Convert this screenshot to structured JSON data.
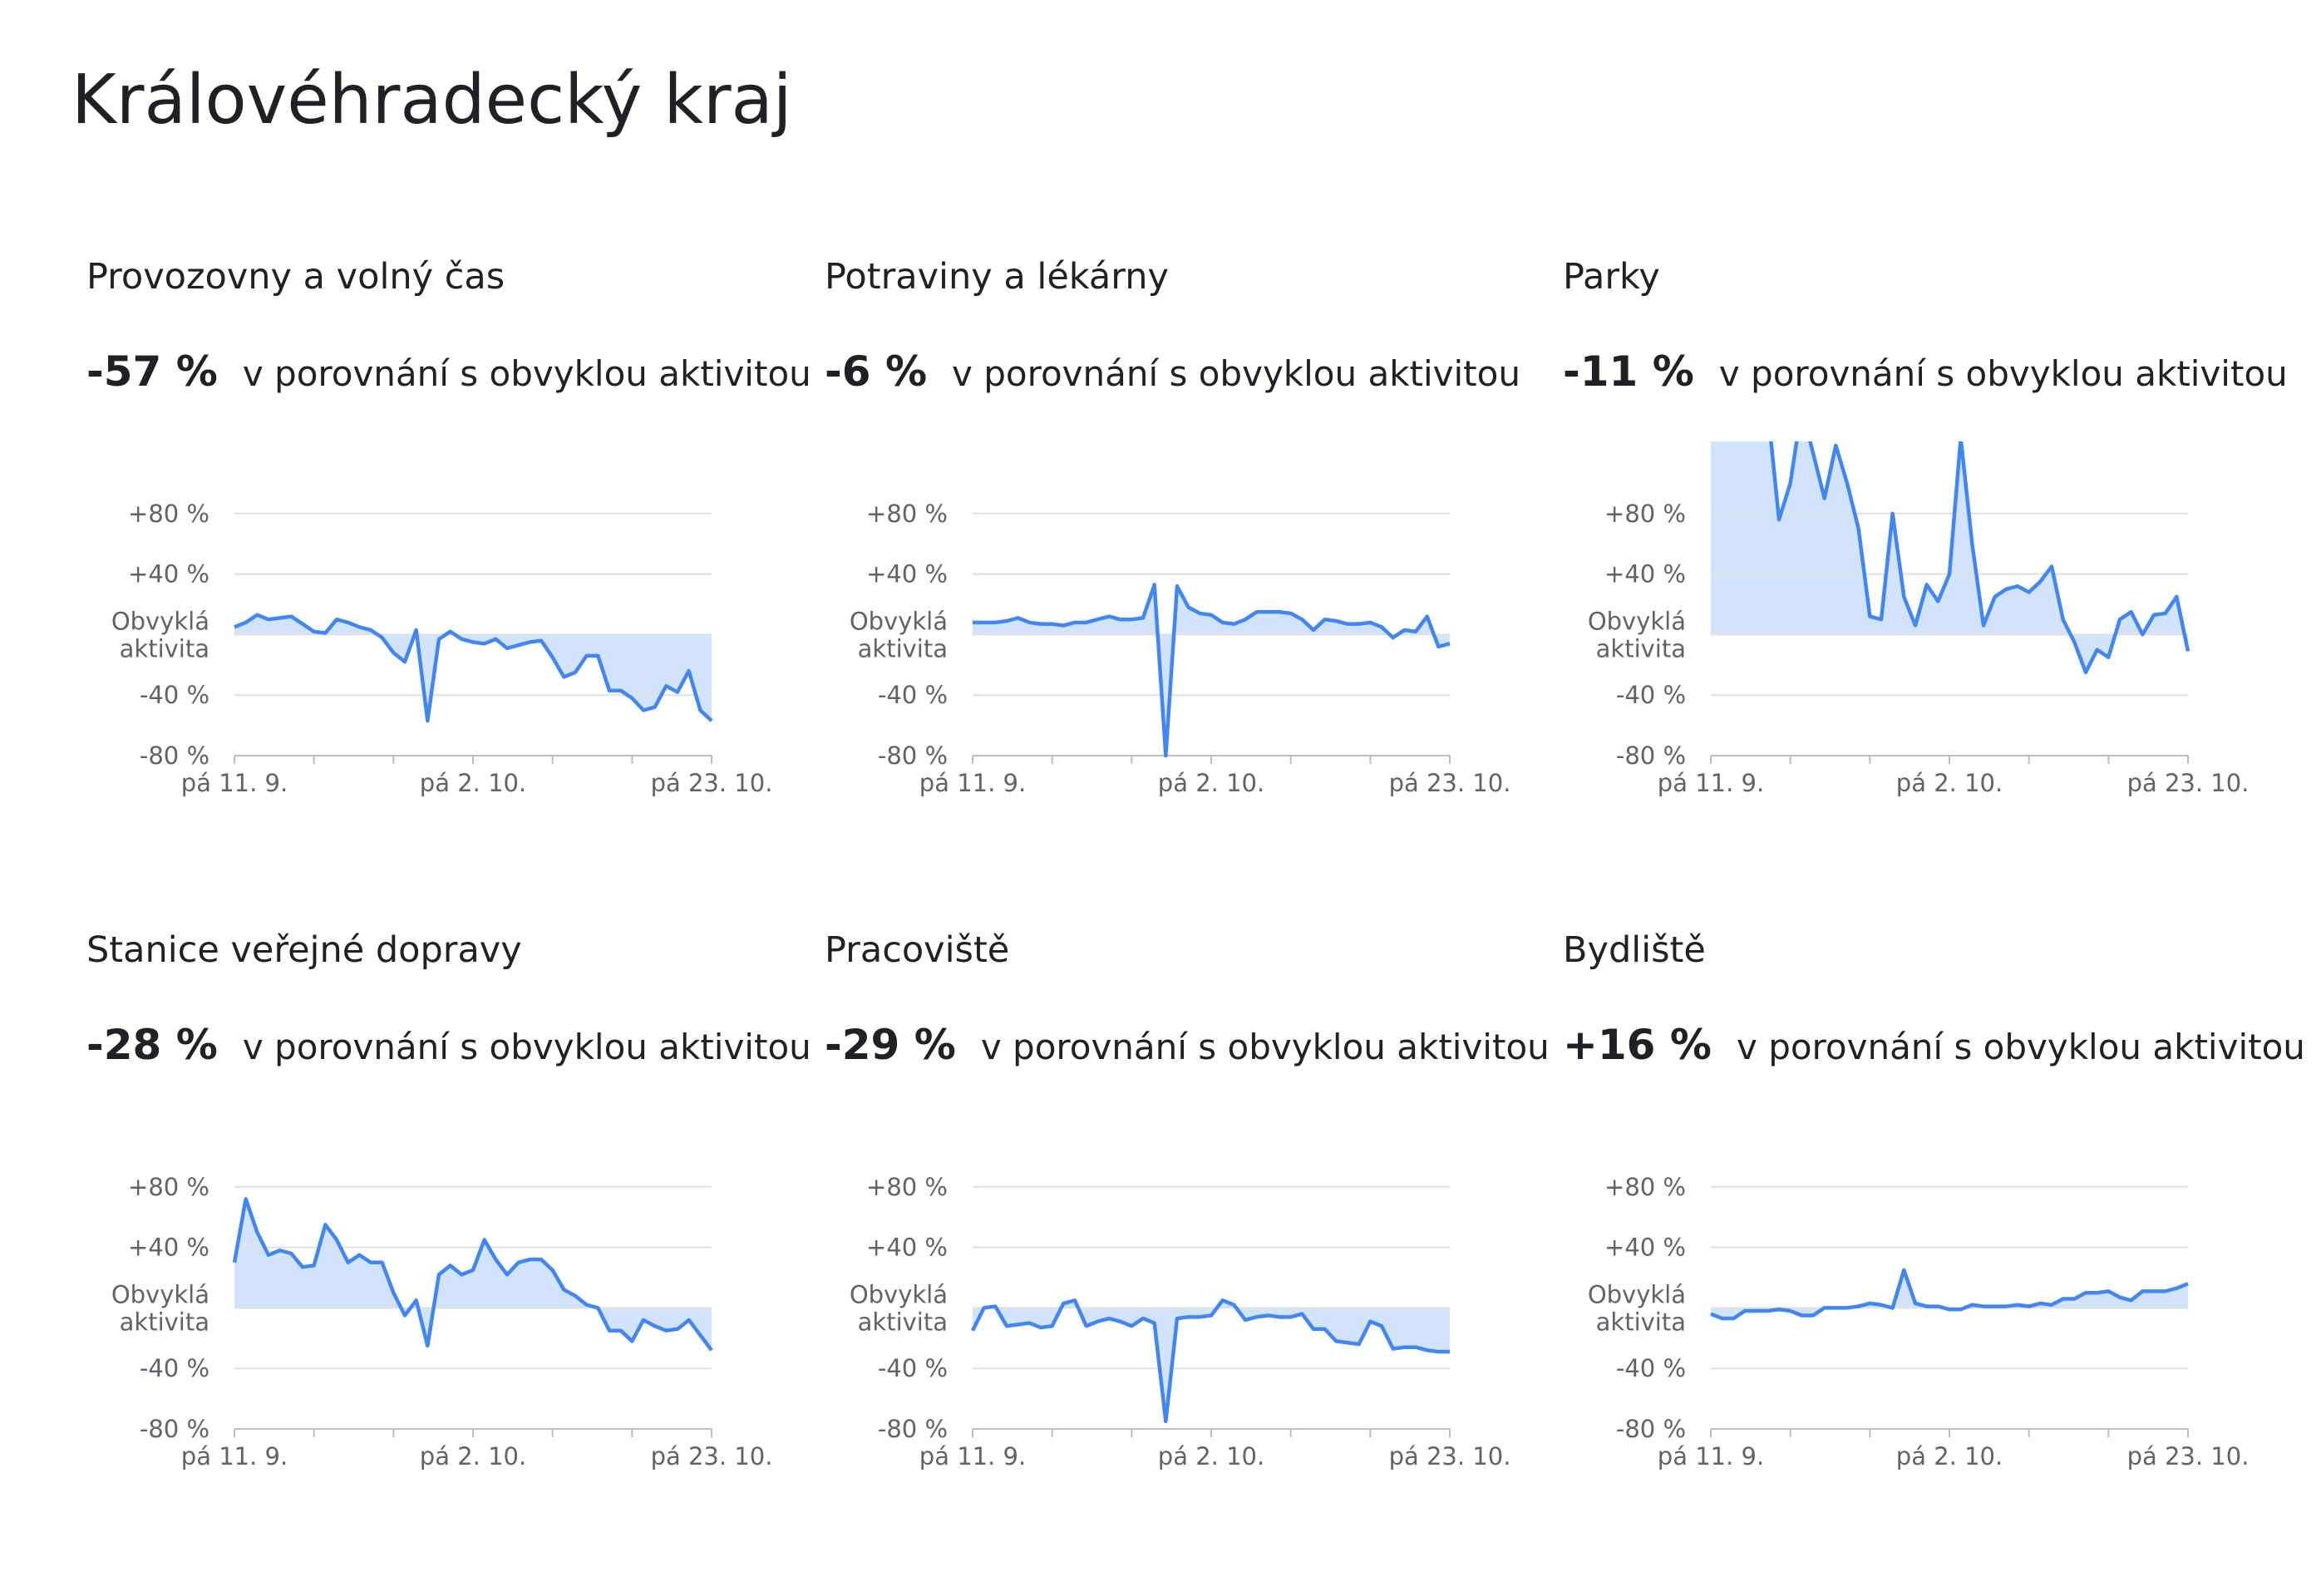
{
  "title": "Královéhradecký kraj",
  "chart_data": [
    {
      "type": "line",
      "title": "Provozovny a volný čas",
      "change": {
        "value": -57,
        "label": "-57 %"
      },
      "subtitle": "v porovnání s obvyklou aktivitou",
      "categories": [
        "pá 11. 9.",
        null,
        null,
        null,
        null,
        null,
        null,
        null,
        null,
        null,
        null,
        null,
        null,
        null,
        null,
        null,
        null,
        null,
        null,
        null,
        null,
        "pá 2. 10.",
        null,
        null,
        null,
        null,
        null,
        null,
        null,
        null,
        null,
        null,
        null,
        null,
        null,
        null,
        null,
        null,
        null,
        null,
        null,
        null,
        "pá 23. 10."
      ],
      "values": [
        5,
        8,
        13,
        10,
        11,
        12,
        7,
        2,
        1,
        10,
        8,
        5,
        3,
        -2,
        -12,
        -18,
        3,
        -57,
        -3,
        2,
        -3,
        -5,
        -6,
        -3,
        -9,
        -7,
        -5,
        -4,
        -15,
        -28,
        -25,
        -14,
        -14,
        -37,
        -37,
        -42,
        -50,
        -48,
        -34,
        -38,
        -24,
        -50,
        -57
      ],
      "ylim": [
        -80,
        120
      ],
      "yticks": [
        {
          "value": -80,
          "label": "-80 %"
        },
        {
          "value": -40,
          "label": "-40 %"
        },
        {
          "value": 0,
          "label": "Obvyklá aktivita"
        },
        {
          "value": 40,
          "label": "+40 %"
        },
        {
          "value": 80,
          "label": "+80 %"
        }
      ],
      "color": "#4285f4"
    },
    {
      "type": "line",
      "title": "Potraviny a lékárny",
      "change": {
        "value": -6,
        "label": "-6 %"
      },
      "subtitle": "v porovnání s obvyklou aktivitou",
      "categories": [
        "pá 11. 9.",
        null,
        null,
        null,
        null,
        null,
        null,
        null,
        null,
        null,
        null,
        null,
        null,
        null,
        null,
        null,
        null,
        null,
        null,
        null,
        null,
        "pá 2. 10.",
        null,
        null,
        null,
        null,
        null,
        null,
        null,
        null,
        null,
        null,
        null,
        null,
        null,
        null,
        null,
        null,
        null,
        null,
        null,
        null,
        "pá 23. 10."
      ],
      "values": [
        8,
        8,
        8,
        9,
        11,
        8,
        7,
        7,
        6,
        8,
        8,
        10,
        12,
        10,
        10,
        11,
        33,
        -80,
        32,
        18,
        14,
        13,
        8,
        7,
        10,
        15,
        15,
        15,
        14,
        10,
        3,
        10,
        9,
        7,
        7,
        8,
        5,
        -2,
        3,
        2,
        12,
        -8,
        -6
      ],
      "ylim": [
        -80,
        120
      ],
      "yticks": [
        {
          "value": -80,
          "label": "-80 %"
        },
        {
          "value": -40,
          "label": "-40 %"
        },
        {
          "value": 0,
          "label": "Obvyklá aktivita"
        },
        {
          "value": 40,
          "label": "+40 %"
        },
        {
          "value": 80,
          "label": "+80 %"
        }
      ],
      "color": "#4285f4"
    },
    {
      "type": "line",
      "title": "Parky",
      "change": {
        "value": -11,
        "label": "-11 %"
      },
      "subtitle": "v porovnání s obvyklou aktivitou",
      "categories": [
        "pá 11. 9.",
        null,
        null,
        null,
        null,
        null,
        null,
        null,
        null,
        null,
        null,
        null,
        null,
        null,
        null,
        null,
        null,
        null,
        null,
        null,
        null,
        "pá 2. 10.",
        null,
        null,
        null,
        null,
        null,
        null,
        null,
        null,
        null,
        null,
        null,
        null,
        null,
        null,
        null,
        null,
        null,
        null,
        null,
        null,
        "pá 23. 10."
      ],
      "values": [
        130,
        140,
        150,
        130,
        135,
        150,
        76,
        100,
        150,
        120,
        90,
        125,
        100,
        70,
        12,
        10,
        80,
        25,
        6,
        33,
        22,
        40,
        130,
        60,
        6,
        25,
        30,
        32,
        28,
        35,
        45,
        10,
        -5,
        -25,
        -10,
        -15,
        10,
        15,
        0,
        13,
        14,
        25,
        -11
      ],
      "ylim": [
        -80,
        120
      ],
      "yticks": [
        {
          "value": -80,
          "label": "-80 %"
        },
        {
          "value": -40,
          "label": "-40 %"
        },
        {
          "value": 0,
          "label": "Obvyklá aktivita"
        },
        {
          "value": 40,
          "label": "+40 %"
        },
        {
          "value": 80,
          "label": "+80 %"
        }
      ],
      "color": "#4285f4"
    },
    {
      "type": "line",
      "title": "Stanice veřejné dopravy",
      "change": {
        "value": -28,
        "label": "-28 %"
      },
      "subtitle": "v porovnání s obvyklou aktivitou",
      "categories": [
        "pá 11. 9.",
        null,
        null,
        null,
        null,
        null,
        null,
        null,
        null,
        null,
        null,
        null,
        null,
        null,
        null,
        null,
        null,
        null,
        null,
        null,
        null,
        "pá 2. 10.",
        null,
        null,
        null,
        null,
        null,
        null,
        null,
        null,
        null,
        null,
        null,
        null,
        null,
        null,
        null,
        null,
        null,
        null,
        null,
        null,
        "pá 23. 10."
      ],
      "values": [
        30,
        72,
        50,
        35,
        38,
        36,
        27,
        28,
        55,
        45,
        30,
        35,
        30,
        30,
        10,
        -5,
        5,
        -25,
        22,
        28,
        22,
        25,
        45,
        32,
        22,
        30,
        32,
        32,
        25,
        12,
        8,
        2,
        0,
        -15,
        -15,
        -22,
        -8,
        -12,
        -15,
        -14,
        -8,
        -18,
        -28
      ],
      "ylim": [
        -80,
        120
      ],
      "yticks": [
        {
          "value": -80,
          "label": "-80 %"
        },
        {
          "value": -40,
          "label": "-40 %"
        },
        {
          "value": 0,
          "label": "Obvyklá aktivita"
        },
        {
          "value": 40,
          "label": "+40 %"
        },
        {
          "value": 80,
          "label": "+80 %"
        }
      ],
      "color": "#4285f4"
    },
    {
      "type": "line",
      "title": "Pracoviště",
      "change": {
        "value": -29,
        "label": "-29 %"
      },
      "subtitle": "v porovnání s obvyklou aktivitou",
      "categories": [
        "pá 11. 9.",
        null,
        null,
        null,
        null,
        null,
        null,
        null,
        null,
        null,
        null,
        null,
        null,
        null,
        null,
        null,
        null,
        null,
        null,
        null,
        null,
        "pá 2. 10.",
        null,
        null,
        null,
        null,
        null,
        null,
        null,
        null,
        null,
        null,
        null,
        null,
        null,
        null,
        null,
        null,
        null,
        null,
        null,
        null,
        "pá 23. 10."
      ],
      "values": [
        -15,
        0,
        1,
        -12,
        -11,
        -10,
        -13,
        -12,
        3,
        5,
        -12,
        -9,
        -7,
        -9,
        -12,
        -7,
        -10,
        -75,
        -7,
        -6,
        -6,
        -5,
        5,
        2,
        -8,
        -6,
        -5,
        -6,
        -6,
        -4,
        -14,
        -14,
        -22,
        -23,
        -24,
        -9,
        -12,
        -27,
        -26,
        -26,
        -28,
        -29,
        -29
      ],
      "ylim": [
        -80,
        120
      ],
      "yticks": [
        {
          "value": -80,
          "label": "-80 %"
        },
        {
          "value": -40,
          "label": "-40 %"
        },
        {
          "value": 0,
          "label": "Obvyklá aktivita"
        },
        {
          "value": 40,
          "label": "+40 %"
        },
        {
          "value": 80,
          "label": "+80 %"
        }
      ],
      "color": "#4285f4"
    },
    {
      "type": "line",
      "title": "Bydliště",
      "change": {
        "value": 16,
        "label": "+16 %"
      },
      "subtitle": "v porovnání s obvyklou aktivitou",
      "categories": [
        "pá 11. 9.",
        null,
        null,
        null,
        null,
        null,
        null,
        null,
        null,
        null,
        null,
        null,
        null,
        null,
        null,
        null,
        null,
        null,
        null,
        null,
        null,
        "pá 2. 10.",
        null,
        null,
        null,
        null,
        null,
        null,
        null,
        null,
        null,
        null,
        null,
        null,
        null,
        null,
        null,
        null,
        null,
        null,
        null,
        null,
        "pá 23. 10."
      ],
      "values": [
        -4,
        -7,
        -7,
        -2,
        -2,
        -2,
        -1,
        -2,
        -5,
        -5,
        0,
        0,
        0,
        1,
        3,
        2,
        0,
        25,
        3,
        1,
        1,
        -1,
        -1,
        2,
        1,
        1,
        1,
        2,
        1,
        3,
        2,
        6,
        6,
        10,
        10,
        11,
        7,
        5,
        11,
        11,
        11,
        13,
        16
      ],
      "ylim": [
        -80,
        120
      ],
      "yticks": [
        {
          "value": -80,
          "label": "-80 %"
        },
        {
          "value": -40,
          "label": "-40 %"
        },
        {
          "value": 0,
          "label": "Obvyklá aktivita"
        },
        {
          "value": 40,
          "label": "+40 %"
        },
        {
          "value": 80,
          "label": "+80 %"
        }
      ],
      "color": "#4285f4"
    }
  ]
}
